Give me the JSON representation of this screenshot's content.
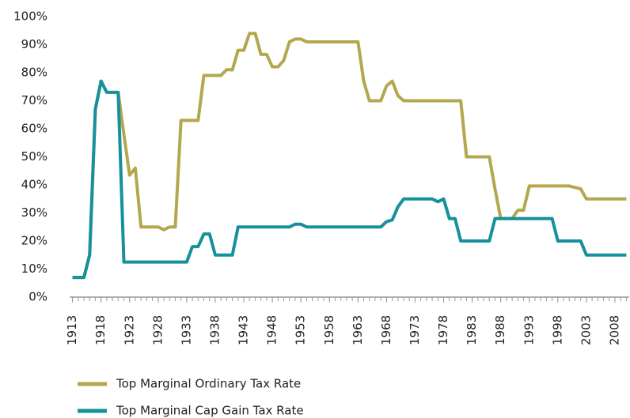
{
  "chart_data": {
    "type": "line",
    "x": [
      1913,
      1914,
      1915,
      1916,
      1917,
      1918,
      1919,
      1920,
      1921,
      1922,
      1923,
      1924,
      1925,
      1926,
      1927,
      1928,
      1929,
      1930,
      1931,
      1932,
      1933,
      1934,
      1935,
      1936,
      1937,
      1938,
      1939,
      1940,
      1941,
      1942,
      1943,
      1944,
      1945,
      1946,
      1947,
      1948,
      1949,
      1950,
      1951,
      1952,
      1953,
      1954,
      1955,
      1956,
      1957,
      1958,
      1959,
      1960,
      1961,
      1962,
      1963,
      1964,
      1965,
      1966,
      1967,
      1968,
      1969,
      1970,
      1971,
      1972,
      1973,
      1974,
      1975,
      1976,
      1977,
      1978,
      1979,
      1980,
      1981,
      1982,
      1983,
      1984,
      1985,
      1986,
      1987,
      1988,
      1989,
      1990,
      1991,
      1992,
      1993,
      1994,
      1995,
      1996,
      1997,
      1998,
      1999,
      2000,
      2001,
      2002,
      2003,
      2004,
      2005,
      2006,
      2007,
      2008,
      2009,
      2010
    ],
    "series": [
      {
        "name": "Top Marginal Ordinary Tax Rate",
        "color": "#b3a74f",
        "values": [
          7,
          7,
          7,
          15,
          67,
          77,
          73,
          73,
          73,
          58,
          43.5,
          46,
          25,
          25,
          25,
          25,
          24,
          25,
          25,
          63,
          63,
          63,
          63,
          79,
          79,
          79,
          79,
          81.1,
          81,
          88,
          88,
          94,
          94,
          86.5,
          86.5,
          82.1,
          82.1,
          84.4,
          91,
          92,
          92,
          91,
          91,
          91,
          91,
          91,
          91,
          91,
          91,
          91,
          91,
          77,
          70,
          70,
          70,
          75.3,
          77,
          71.8,
          70,
          70,
          70,
          70,
          70,
          70,
          70,
          70,
          70,
          70,
          70,
          50,
          50,
          50,
          50,
          50,
          38.5,
          28,
          28,
          28,
          31,
          31,
          39.6,
          39.6,
          39.6,
          39.6,
          39.6,
          39.6,
          39.6,
          39.6,
          39.1,
          38.6,
          35,
          35,
          35,
          35,
          35,
          35,
          35,
          35
        ]
      },
      {
        "name": "Top Marginal Cap Gain Tax Rate",
        "color": "#16909b",
        "values": [
          7,
          7,
          7,
          15,
          67,
          77,
          73,
          73,
          73,
          12.5,
          12.5,
          12.5,
          12.5,
          12.5,
          12.5,
          12.5,
          12.5,
          12.5,
          12.5,
          12.5,
          12.5,
          18,
          18,
          22.5,
          22.5,
          15,
          15,
          15,
          15,
          25,
          25,
          25,
          25,
          25,
          25,
          25,
          25,
          25,
          25,
          26,
          26,
          25,
          25,
          25,
          25,
          25,
          25,
          25,
          25,
          25,
          25,
          25,
          25,
          25,
          25,
          26.9,
          27.5,
          32.2,
          35,
          35,
          35,
          35,
          35,
          35,
          34,
          35,
          28,
          28,
          20,
          20,
          20,
          20,
          20,
          20,
          28,
          28,
          28,
          28,
          28,
          28,
          28,
          28,
          28,
          28,
          28,
          20,
          20,
          20,
          20,
          20,
          15,
          15,
          15,
          15,
          15,
          15,
          15,
          15
        ]
      }
    ],
    "xlim": [
      1912.5,
      2010.5
    ],
    "xticks": [
      1913,
      1918,
      1923,
      1928,
      1933,
      1938,
      1943,
      1948,
      1953,
      1958,
      1963,
      1968,
      1973,
      1978,
      1983,
      1988,
      1993,
      1998,
      2003,
      2008
    ],
    "ylim": [
      0,
      100
    ],
    "yticks": [
      {
        "value": 0,
        "label": "0%"
      },
      {
        "value": 10,
        "label": "10%"
      },
      {
        "value": 20,
        "label": "20%"
      },
      {
        "value": 30,
        "label": "30%"
      },
      {
        "value": 40,
        "label": "40%"
      },
      {
        "value": 50,
        "label": "50%"
      },
      {
        "value": 60,
        "label": "60%"
      },
      {
        "value": 70,
        "label": "70%"
      },
      {
        "value": 80,
        "label": "80%"
      },
      {
        "value": 90,
        "label": "90%"
      },
      {
        "value": 100,
        "label": "100%"
      }
    ],
    "legend": "bottom-left"
  }
}
